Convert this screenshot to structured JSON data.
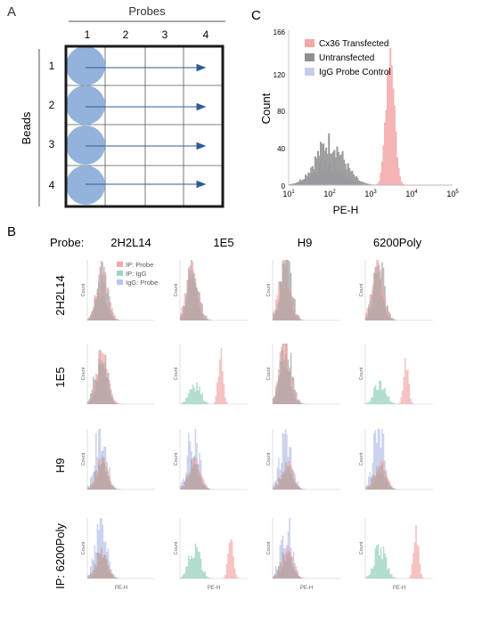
{
  "panelA": {
    "label": "A",
    "probes_title": "Probes",
    "beads_title": "Beads",
    "columns": [
      "1",
      "2",
      "3",
      "4"
    ],
    "rows": [
      "1",
      "2",
      "3",
      "4"
    ]
  },
  "panelC": {
    "label": "C",
    "ylabel": "Count",
    "xlabel": "PE-H",
    "yticks": [
      "0",
      "40",
      "80",
      "120",
      "166"
    ],
    "legend": [
      "Cx36 Transfected",
      "Untransfected",
      "IgG Probe Control"
    ],
    "colors": {
      "cx36": "#f4a8a8",
      "untransfected": "#8f8f8f",
      "igg": "#c7cce8"
    }
  },
  "panelB": {
    "label": "B",
    "probe_label": "Probe:",
    "col_labels": [
      "2H2L14",
      "1E5",
      "H9",
      "6200Poly"
    ],
    "row_labels": [
      "2H2L14",
      "1E5",
      "H9",
      "IP: 6200Poly"
    ],
    "legend": [
      "IP: Probe",
      "IP: IgG",
      "IgG: Probe"
    ],
    "ylabel": "Count",
    "xlabel": "PE-H"
  },
  "chart_data": [
    {
      "type": "area",
      "title": "",
      "xlabel": "PE-H",
      "ylabel": "Count",
      "xscale": "log",
      "xlim": [
        10,
        100000
      ],
      "ylim": [
        0,
        166
      ],
      "xtick_labels": [
        "10^1",
        "10^2",
        "10^3",
        "10^4",
        "10^5"
      ],
      "ytick_labels": [
        "0",
        "40",
        "80",
        "120",
        "166"
      ],
      "legend_position": "top-right",
      "series": [
        {
          "name": "Cx36 Transfected",
          "color": "#f4a8a8",
          "peak_x": 3000,
          "peak_y": 148
        },
        {
          "name": "Untransfected",
          "color": "#8f8f8f",
          "peak_x": 100,
          "peak_y": 45
        },
        {
          "name": "IgG Probe Control",
          "color": "#c7cce8",
          "peak_x": 90,
          "peak_y": 20
        }
      ]
    },
    {
      "type": "area",
      "title": "",
      "xlabel": "PE-H",
      "ylabel": "Count",
      "xscale": "log",
      "grid_rows": [
        "2H2L14",
        "1E5",
        "H9",
        "IP: 6200Poly"
      ],
      "grid_cols": [
        "2H2L14",
        "1E5",
        "H9",
        "6200Poly"
      ],
      "series": [
        {
          "name": "IP: Probe",
          "color": "#f4a8a8"
        },
        {
          "name": "IP: IgG",
          "color": "#9fd4c4"
        },
        {
          "name": "IgG: Probe",
          "color": "#b9c4ea"
        }
      ],
      "cells": [
        [
          {
            "probe_peak": 1.9,
            "probe_h": 0.95,
            "igg": 0.55,
            "iggp": 0.55
          },
          {
            "probe_peak": 1.7,
            "probe_h": 0.95,
            "igg": 0.95,
            "iggp": 0.45
          },
          {
            "probe_peak": 1.7,
            "probe_h": 0.95,
            "igg": 0.95,
            "iggp": 0.45
          },
          {
            "probe_peak": 1.7,
            "probe_h": 0.95,
            "igg": 0.95,
            "iggp": 0.45
          }
        ],
        [
          {
            "probe_peak": 1.9,
            "probe_h": 0.9,
            "igg": 0.9,
            "iggp": 0.45
          },
          {
            "probe_peak": 3.4,
            "probe_h": 0.85,
            "igg": 0.35,
            "iggp": 0.0
          },
          {
            "probe_peak": 1.7,
            "probe_h": 0.95,
            "igg": 0.95,
            "iggp": 0.45
          },
          {
            "probe_peak": 3.4,
            "probe_h": 0.75,
            "igg": 0.4,
            "iggp": 0.0
          }
        ],
        [
          {
            "probe_peak": 1.9,
            "probe_h": 0.5,
            "igg": 0.45,
            "iggp": 0.95
          },
          {
            "probe_peak": 1.9,
            "probe_h": 0.45,
            "igg": 0.4,
            "iggp": 0.95
          },
          {
            "probe_peak": 1.9,
            "probe_h": 0.45,
            "igg": 0.4,
            "iggp": 0.95
          },
          {
            "probe_peak": 1.9,
            "probe_h": 0.45,
            "igg": 0.4,
            "iggp": 0.95
          }
        ],
        [
          {
            "probe_peak": 1.9,
            "probe_h": 0.45,
            "igg": 0.4,
            "iggp": 0.9
          },
          {
            "probe_peak": 4.0,
            "probe_h": 0.85,
            "igg": 0.55,
            "iggp": 0.0
          },
          {
            "probe_peak": 1.9,
            "probe_h": 0.45,
            "igg": 0.4,
            "iggp": 0.9
          },
          {
            "probe_peak": 4.0,
            "probe_h": 0.85,
            "igg": 0.55,
            "iggp": 0.0
          }
        ]
      ]
    }
  ]
}
